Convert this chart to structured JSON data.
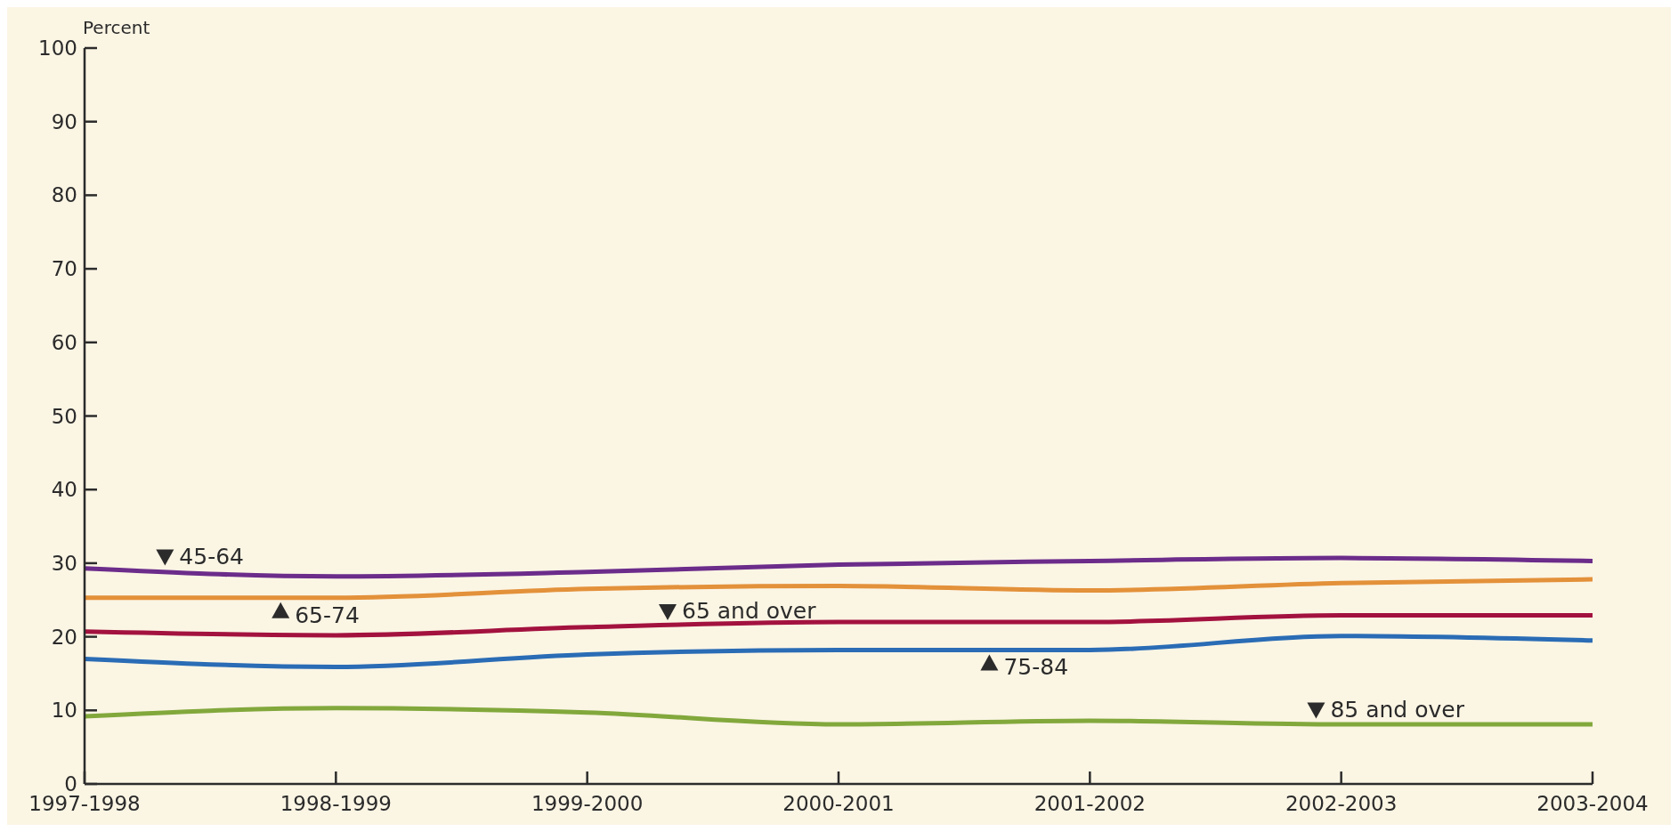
{
  "chart_data": {
    "type": "line",
    "ylabel": "Percent",
    "categories": [
      "1997-1998",
      "1998-1999",
      "1999-2000",
      "2000-2001",
      "2001-2002",
      "2002-2003",
      "2003-2004"
    ],
    "series": [
      {
        "name": "45-64",
        "color": "#6b2c8a",
        "values": [
          29.3,
          28.2,
          28.8,
          29.8,
          30.3,
          30.7,
          30.3
        ]
      },
      {
        "name": "65-74",
        "color": "#e3913a",
        "values": [
          25.3,
          25.3,
          26.5,
          26.9,
          26.3,
          27.3,
          27.8
        ]
      },
      {
        "name": "65 and over",
        "color": "#a3123f",
        "values": [
          20.7,
          20.2,
          21.3,
          22.0,
          22.0,
          22.9,
          22.9
        ]
      },
      {
        "name": "75-84",
        "color": "#2a6cb5",
        "values": [
          17.0,
          15.9,
          17.6,
          18.2,
          18.2,
          20.1,
          19.5
        ]
      },
      {
        "name": "85 and over",
        "color": "#82a83c",
        "values": [
          9.2,
          10.3,
          9.7,
          8.1,
          8.6,
          8.1,
          8.1
        ]
      }
    ],
    "ylim": [
      0,
      100
    ],
    "yticks": [
      0,
      10,
      20,
      30,
      40,
      50,
      60,
      70,
      80,
      90,
      100
    ],
    "grid": false,
    "legend": false
  }
}
